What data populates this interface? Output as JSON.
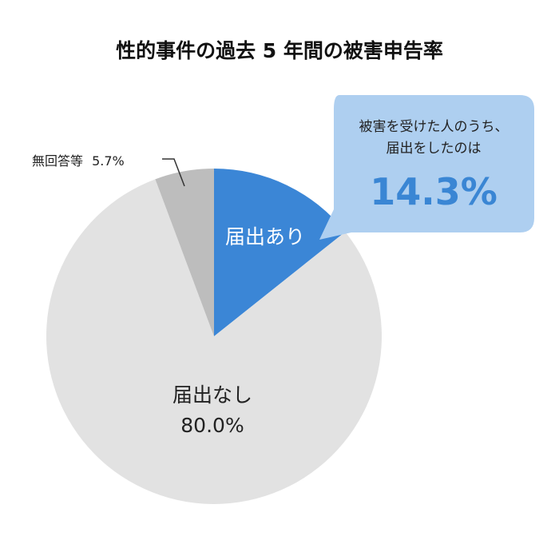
{
  "chart_data": {
    "type": "pie",
    "title": "性的事件の過去 5 年間の被害申告率",
    "slices": [
      {
        "label": "届出あり",
        "value": 14.3,
        "value_label": "",
        "color": "#3b86d6"
      },
      {
        "label": "届出なし",
        "value": 80.0,
        "value_label": "80.0%",
        "color": "#e2e2e2"
      },
      {
        "label": "無回答等",
        "value": 5.7,
        "value_label": "5.7%",
        "color": "#bdbdbd"
      }
    ],
    "start_angle_deg": 0,
    "direction": "clockwise",
    "callout": {
      "line1": "被害を受けた人のうち、",
      "line2": "届出をしたのは",
      "value": "14.3%",
      "bg_color": "#aecff0"
    }
  }
}
